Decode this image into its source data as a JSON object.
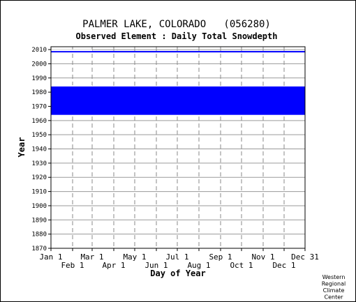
{
  "chart_data": {
    "type": "heatmap",
    "title": "PALMER LAKE, COLORADO   (056280)",
    "subtitle": "Observed Element : Daily Total Snowdepth",
    "xlabel": "Day of Year",
    "ylabel": "Year",
    "xlim": [
      1,
      365
    ],
    "ylim": [
      1870,
      2012
    ],
    "x_ticks_upper": [
      {
        "label": "Jan 1",
        "day": 1
      },
      {
        "label": "Mar 1",
        "day": 60
      },
      {
        "label": "May 1",
        "day": 121
      },
      {
        "label": "Jul 1",
        "day": 182
      },
      {
        "label": "Sep 1",
        "day": 244
      },
      {
        "label": "Nov 1",
        "day": 305
      },
      {
        "label": "Dec 31",
        "day": 365
      }
    ],
    "x_ticks_lower": [
      {
        "label": "Feb 1",
        "day": 32
      },
      {
        "label": "Apr 1",
        "day": 91
      },
      {
        "label": "Jun 1",
        "day": 152
      },
      {
        "label": "Aug 1",
        "day": 213
      },
      {
        "label": "Oct 1",
        "day": 274
      },
      {
        "label": "Dec 1",
        "day": 335
      }
    ],
    "y_ticks": [
      1870,
      1880,
      1890,
      1900,
      1910,
      1920,
      1930,
      1940,
      1950,
      1960,
      1970,
      1980,
      1990,
      2000,
      2010
    ],
    "grid": true,
    "series": [
      {
        "color": "#0000ff",
        "data_blocks": [
          {
            "day_start": 1,
            "day_end": 365,
            "year_start": 1964,
            "year_end": 1984
          },
          {
            "day_start": 1,
            "day_end": 365,
            "year_start": 2008,
            "year_end": 2009
          }
        ],
        "gaps": [
          {
            "day_start": 1,
            "day_end": 60,
            "year_start": 1984,
            "year_end": 1984.8
          },
          {
            "day_start": 1,
            "day_end": 60,
            "year_start": 2009,
            "year_end": 2010
          }
        ]
      }
    ]
  },
  "credit": [
    "Western",
    "Regional",
    "Climate",
    "Center"
  ]
}
